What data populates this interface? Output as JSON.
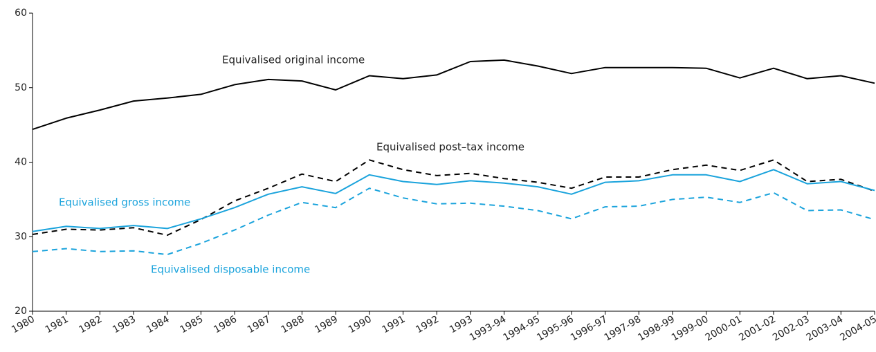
{
  "chart_data": {
    "type": "line",
    "categories": [
      "1980",
      "1981",
      "1982",
      "1983",
      "1984",
      "1985",
      "1986",
      "1987",
      "1988",
      "1989",
      "1990",
      "1991",
      "1992",
      "1993",
      "1993-94",
      "1994-95",
      "1995-96",
      "1996-97",
      "1997-98",
      "1998-99",
      "1999-00",
      "2000-01",
      "2001-02",
      "2002-03",
      "2003-04",
      "2004-05"
    ],
    "series": [
      {
        "name": "Equivalised original income",
        "color": "#000000",
        "line_style": "solid",
        "values": [
          44.4,
          45.9,
          47.0,
          48.2,
          48.6,
          49.1,
          50.4,
          51.1,
          50.9,
          49.7,
          51.6,
          51.2,
          51.7,
          53.5,
          53.7,
          52.9,
          51.9,
          52.7,
          52.7,
          52.7,
          52.6,
          51.3,
          52.6,
          51.2,
          51.6,
          50.6
        ]
      },
      {
        "name": "Equivalised post–tax income",
        "color": "#000000",
        "line_style": "dashed",
        "values": [
          30.3,
          31.0,
          30.9,
          31.2,
          30.2,
          32.3,
          34.8,
          36.5,
          38.4,
          37.4,
          40.3,
          39.0,
          38.2,
          38.5,
          37.8,
          37.3,
          36.5,
          38.0,
          38.0,
          39.0,
          39.6,
          38.9,
          40.3,
          37.4,
          37.7,
          36.1
        ]
      },
      {
        "name": "Equivalised gross income",
        "color": "#1aa3dc",
        "line_style": "solid",
        "values": [
          30.7,
          31.4,
          31.1,
          31.5,
          31.1,
          32.4,
          33.9,
          35.7,
          36.7,
          35.8,
          38.3,
          37.4,
          37.0,
          37.5,
          37.2,
          36.7,
          35.7,
          37.3,
          37.5,
          38.3,
          38.3,
          37.4,
          39.0,
          37.1,
          37.4,
          36.2
        ]
      },
      {
        "name": "Equivalised disposable income",
        "color": "#1aa3dc",
        "line_style": "dashed",
        "values": [
          28.0,
          28.4,
          28.0,
          28.1,
          27.6,
          29.1,
          30.9,
          32.9,
          34.6,
          33.9,
          36.5,
          35.2,
          34.4,
          34.5,
          34.1,
          33.5,
          32.4,
          34.0,
          34.1,
          35.0,
          35.3,
          34.6,
          35.9,
          33.5,
          33.6,
          32.3
        ]
      }
    ],
    "ylim": [
      20,
      60
    ],
    "yticks": [
      20,
      30,
      40,
      50,
      60
    ],
    "grid": false
  }
}
